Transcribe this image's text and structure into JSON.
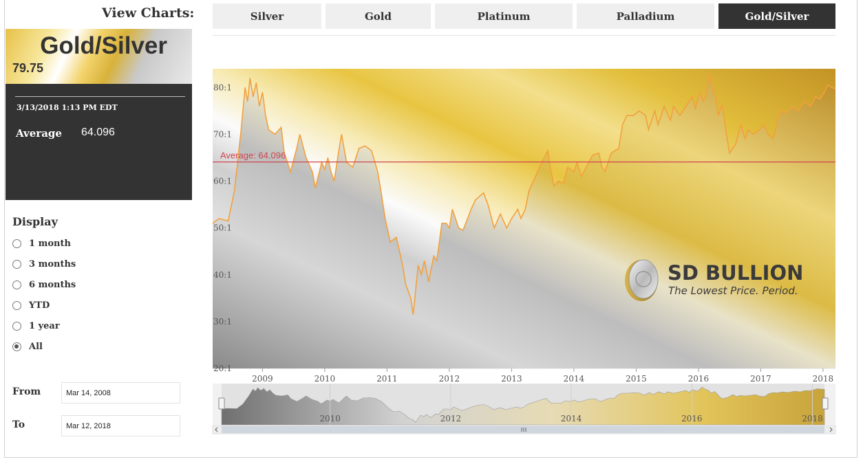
{
  "left_panel": {
    "view_title": "View Charts:",
    "pair_name": "Gold/Silver",
    "pair_price": "79.75",
    "timestamp": "3/13/2018 1:13 PM EDT",
    "average_label": "Average",
    "average_value": "64.096",
    "display_title": "Display",
    "display_options": [
      "1 month",
      "3 months",
      "6 months",
      "YTD",
      "1 year",
      "All"
    ],
    "display_selected": "All",
    "from_label": "From",
    "from_value": "Mar 14, 2008",
    "to_label": "To",
    "to_value": "Mar 12, 2018"
  },
  "tabs": [
    "Silver",
    "Gold",
    "Platinum",
    "Palladium",
    "Gold/Silver"
  ],
  "active_tab": "Gold/Silver",
  "colors": {
    "dark_panel": "#333333",
    "line": "#f2a13c",
    "average_line": "#d0454f",
    "gold": "#e3c04a",
    "silver": "#cfcfcf"
  },
  "logo": {
    "title": "SD BULLION",
    "subtitle": "The Lowest Price. Period."
  },
  "chart_data": {
    "type": "area",
    "y_tick_labels": [
      "20:1",
      "30:1",
      "40:1",
      "50:1",
      "60:1",
      "70:1",
      "80:1"
    ],
    "y_ticks": [
      20,
      30,
      40,
      50,
      60,
      70,
      80
    ],
    "ylim": [
      20,
      84
    ],
    "x_tick_labels": [
      "2009",
      "2010",
      "2011",
      "2012",
      "2013",
      "2014",
      "2015",
      "2016",
      "2017",
      "2018"
    ],
    "x_ticks": [
      2009,
      2010,
      2011,
      2012,
      2013,
      2014,
      2015,
      2016,
      2017,
      2018
    ],
    "xlim": [
      2008.2,
      2018.2
    ],
    "average": 64.096,
    "average_label": "Average: 64.096",
    "navigator_tick_labels": [
      "2010",
      "2012",
      "2014",
      "2016",
      "2018"
    ],
    "navigator_ticks": [
      2010,
      2012,
      2014,
      2016,
      2018
    ],
    "points": [
      [
        2008.2,
        51
      ],
      [
        2008.3,
        52
      ],
      [
        2008.45,
        51.5
      ],
      [
        2008.55,
        58
      ],
      [
        2008.65,
        70
      ],
      [
        2008.72,
        80
      ],
      [
        2008.76,
        77
      ],
      [
        2008.8,
        82
      ],
      [
        2008.85,
        78
      ],
      [
        2008.9,
        81
      ],
      [
        2008.95,
        76
      ],
      [
        2009.0,
        79
      ],
      [
        2009.05,
        74
      ],
      [
        2009.1,
        71
      ],
      [
        2009.2,
        70
      ],
      [
        2009.3,
        71.5
      ],
      [
        2009.35,
        66
      ],
      [
        2009.45,
        62
      ],
      [
        2009.55,
        67
      ],
      [
        2009.6,
        70
      ],
      [
        2009.7,
        65
      ],
      [
        2009.8,
        62
      ],
      [
        2009.85,
        58.5
      ],
      [
        2009.95,
        64
      ],
      [
        2010.0,
        62.5
      ],
      [
        2010.05,
        65
      ],
      [
        2010.1,
        62
      ],
      [
        2010.15,
        60
      ],
      [
        2010.22,
        66
      ],
      [
        2010.27,
        70
      ],
      [
        2010.35,
        64
      ],
      [
        2010.45,
        63
      ],
      [
        2010.55,
        67
      ],
      [
        2010.65,
        67.5
      ],
      [
        2010.75,
        66.5
      ],
      [
        2010.85,
        62
      ],
      [
        2010.9,
        58
      ],
      [
        2010.97,
        52
      ],
      [
        2011.05,
        47
      ],
      [
        2011.15,
        48
      ],
      [
        2011.25,
        42
      ],
      [
        2011.3,
        38
      ],
      [
        2011.38,
        35
      ],
      [
        2011.42,
        31.5
      ],
      [
        2011.5,
        42
      ],
      [
        2011.55,
        40
      ],
      [
        2011.6,
        43
      ],
      [
        2011.67,
        38.5
      ],
      [
        2011.75,
        44
      ],
      [
        2011.8,
        43
      ],
      [
        2011.88,
        51
      ],
      [
        2011.95,
        51
      ],
      [
        2012.0,
        50
      ],
      [
        2012.05,
        54
      ],
      [
        2012.1,
        52
      ],
      [
        2012.15,
        50
      ],
      [
        2012.22,
        49.5
      ],
      [
        2012.35,
        54
      ],
      [
        2012.42,
        56
      ],
      [
        2012.55,
        57.5
      ],
      [
        2012.62,
        55
      ],
      [
        2012.72,
        50
      ],
      [
        2012.82,
        53
      ],
      [
        2012.92,
        50
      ],
      [
        2013.0,
        52
      ],
      [
        2013.1,
        54
      ],
      [
        2013.15,
        52
      ],
      [
        2013.22,
        54
      ],
      [
        2013.28,
        58
      ],
      [
        2013.35,
        60
      ],
      [
        2013.45,
        63
      ],
      [
        2013.58,
        66.5
      ],
      [
        2013.62,
        63
      ],
      [
        2013.68,
        59
      ],
      [
        2013.75,
        60
      ],
      [
        2013.83,
        59.5
      ],
      [
        2013.9,
        63
      ],
      [
        2014.0,
        62
      ],
      [
        2014.05,
        64
      ],
      [
        2014.12,
        61
      ],
      [
        2014.2,
        63
      ],
      [
        2014.3,
        65.5
      ],
      [
        2014.4,
        66
      ],
      [
        2014.45,
        63
      ],
      [
        2014.5,
        62
      ],
      [
        2014.6,
        66
      ],
      [
        2014.72,
        67
      ],
      [
        2014.78,
        72
      ],
      [
        2014.85,
        74
      ],
      [
        2014.95,
        74
      ],
      [
        2015.05,
        75
      ],
      [
        2015.15,
        74
      ],
      [
        2015.2,
        71
      ],
      [
        2015.3,
        75
      ],
      [
        2015.35,
        72
      ],
      [
        2015.45,
        76
      ],
      [
        2015.55,
        73
      ],
      [
        2015.6,
        76
      ],
      [
        2015.7,
        74
      ],
      [
        2015.8,
        76
      ],
      [
        2015.9,
        78
      ],
      [
        2015.95,
        75.5
      ],
      [
        2016.02,
        79
      ],
      [
        2016.08,
        77
      ],
      [
        2016.12,
        78.5
      ],
      [
        2016.17,
        83
      ],
      [
        2016.22,
        80
      ],
      [
        2016.28,
        78
      ],
      [
        2016.32,
        74
      ],
      [
        2016.38,
        76.5
      ],
      [
        2016.45,
        70
      ],
      [
        2016.5,
        66
      ],
      [
        2016.6,
        68
      ],
      [
        2016.68,
        72
      ],
      [
        2016.75,
        69
      ],
      [
        2016.8,
        71
      ],
      [
        2016.88,
        70
      ],
      [
        2016.98,
        71
      ],
      [
        2017.05,
        72
      ],
      [
        2017.12,
        70
      ],
      [
        2017.2,
        69
      ],
      [
        2017.28,
        73.5
      ],
      [
        2017.35,
        75
      ],
      [
        2017.42,
        74.5
      ],
      [
        2017.5,
        76
      ],
      [
        2017.6,
        75
      ],
      [
        2017.7,
        77
      ],
      [
        2017.8,
        76
      ],
      [
        2017.88,
        78
      ],
      [
        2017.95,
        77.5
      ],
      [
        2018.02,
        79
      ],
      [
        2018.08,
        80.5
      ],
      [
        2018.14,
        80
      ],
      [
        2018.2,
        79.75
      ]
    ]
  }
}
